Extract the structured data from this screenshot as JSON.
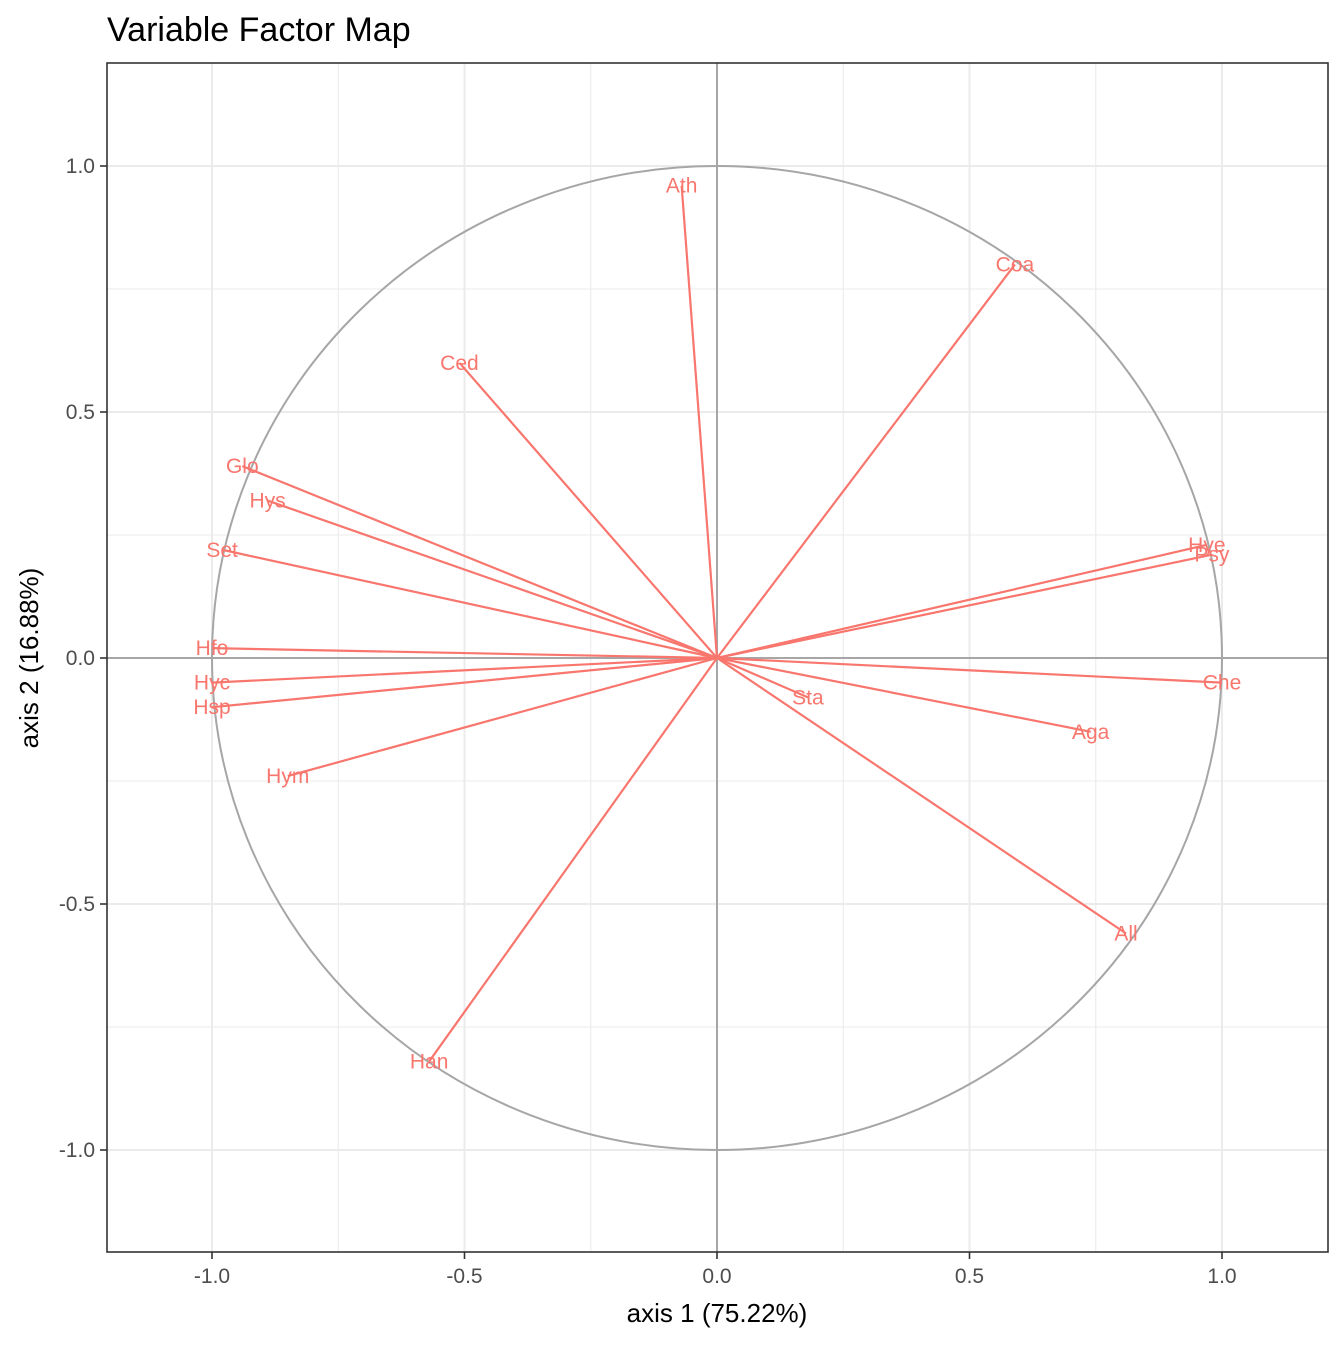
{
  "chart_data": {
    "type": "scatter",
    "subtype": "correlation-circle",
    "title": "Variable Factor Map",
    "xlabel": "axis 1 (75.22%)",
    "ylabel": "axis 2 (16.88%)",
    "xlim": [
      -1.2,
      1.2
    ],
    "ylim": [
      -1.2,
      1.2
    ],
    "x_ticks": [
      -1.0,
      -0.5,
      0.0,
      0.5,
      1.0
    ],
    "y_ticks": [
      -1.0,
      -0.5,
      0.0,
      0.5,
      1.0
    ],
    "x_tick_labels": [
      "-1.0",
      "-0.5",
      "0.0",
      "0.5",
      "1.0"
    ],
    "y_tick_labels": [
      "-1.0",
      "-0.5",
      "0.0",
      "0.5",
      "1.0"
    ],
    "grid": true,
    "unit_circle": true,
    "arrow_color": "#F8766D",
    "circle_color": "#A6A6A6",
    "variables": [
      {
        "label": "Ath",
        "x": -0.07,
        "y": 0.96
      },
      {
        "label": "Coa",
        "x": 0.59,
        "y": 0.8
      },
      {
        "label": "Ced",
        "x": -0.51,
        "y": 0.6
      },
      {
        "label": "Glo",
        "x": -0.94,
        "y": 0.39
      },
      {
        "label": "Hys",
        "x": -0.89,
        "y": 0.32
      },
      {
        "label": "Set",
        "x": -0.98,
        "y": 0.22
      },
      {
        "label": "Hye",
        "x": 0.97,
        "y": 0.23
      },
      {
        "label": "Psy",
        "x": 0.98,
        "y": 0.21
      },
      {
        "label": "Hfo",
        "x": -1.0,
        "y": 0.02
      },
      {
        "label": "Hyc",
        "x": -1.0,
        "y": -0.05
      },
      {
        "label": "Hsp",
        "x": -1.0,
        "y": -0.1
      },
      {
        "label": "Che",
        "x": 1.0,
        "y": -0.05
      },
      {
        "label": "Sta",
        "x": 0.18,
        "y": -0.08
      },
      {
        "label": "Aga",
        "x": 0.74,
        "y": -0.15
      },
      {
        "label": "Hym",
        "x": -0.85,
        "y": -0.24
      },
      {
        "label": "All",
        "x": 0.81,
        "y": -0.56
      },
      {
        "label": "Han",
        "x": -0.57,
        "y": -0.82
      }
    ]
  }
}
